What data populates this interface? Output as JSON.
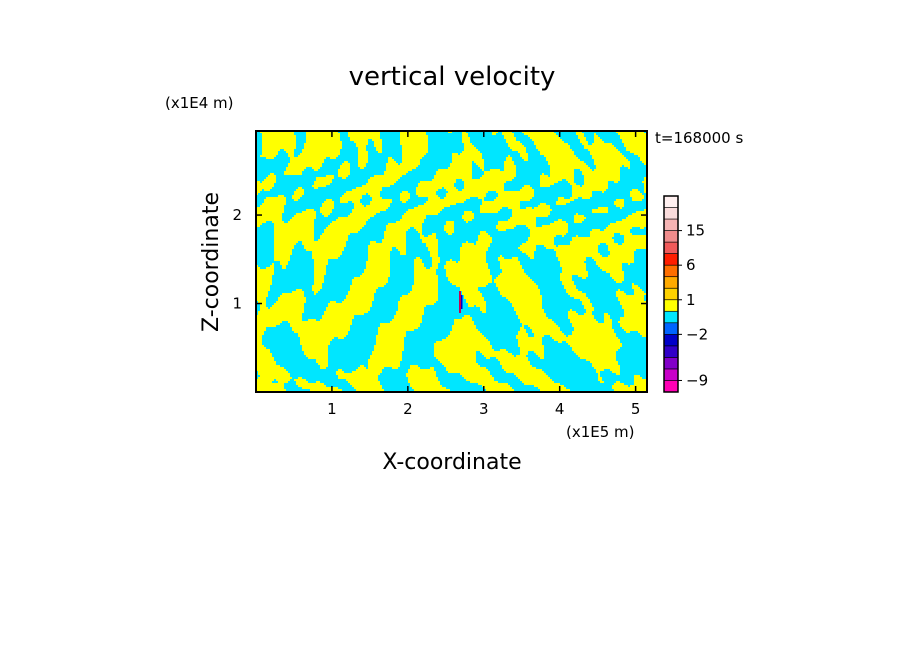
{
  "chart_data": {
    "type": "heatmap",
    "title": "vertical velocity",
    "xlabel": "X-coordinate",
    "ylabel": "Z-coordinate",
    "x_unit": "(x1E5 m)",
    "y_unit": "(x1E4 m)",
    "time_label": "t=168000  s",
    "xlim": [
      0,
      5.15
    ],
    "ylim": [
      0,
      2.95
    ],
    "x_ticks": [
      1,
      2,
      3,
      4,
      5
    ],
    "y_ticks": [
      1,
      2
    ],
    "colorbar": {
      "levels": [
        {
          "lo": -12,
          "hi": -9,
          "color": "#ff00b4"
        },
        {
          "lo": -9,
          "hi": -6,
          "color": "#c800c8"
        },
        {
          "lo": -6,
          "hi": -4,
          "color": "#8200c8"
        },
        {
          "lo": -4,
          "hi": -3,
          "color": "#3200c8"
        },
        {
          "lo": -3,
          "hi": -2,
          "color": "#0000c8"
        },
        {
          "lo": -2,
          "hi": -1,
          "color": "#0064ff"
        },
        {
          "lo": -1,
          "hi": 0,
          "color": "#00e6ff"
        },
        {
          "lo": 0,
          "hi": 1,
          "color": "#ffff00"
        },
        {
          "lo": 1,
          "hi": 2,
          "color": "#ffd200"
        },
        {
          "lo": 2,
          "hi": 4,
          "color": "#ffaa00"
        },
        {
          "lo": 4,
          "hi": 6,
          "color": "#ff6e00"
        },
        {
          "lo": 6,
          "hi": 9,
          "color": "#ff1e00"
        },
        {
          "lo": 9,
          "hi": 12,
          "color": "#f05a5a"
        },
        {
          "lo": 12,
          "hi": 15,
          "color": "#f08c8c"
        },
        {
          "lo": 15,
          "hi": 18,
          "color": "#f5b4b4"
        },
        {
          "lo": 18,
          "hi": 21,
          "color": "#fadcdc"
        },
        {
          "lo": 21,
          "hi": 24,
          "color": "#fff0f0"
        }
      ],
      "tick_labels": [
        "-9",
        "-2",
        "1",
        "6",
        "15"
      ]
    },
    "dominant_colors": {
      "positive": "#ffff00",
      "negative": "#00e6ff"
    }
  }
}
